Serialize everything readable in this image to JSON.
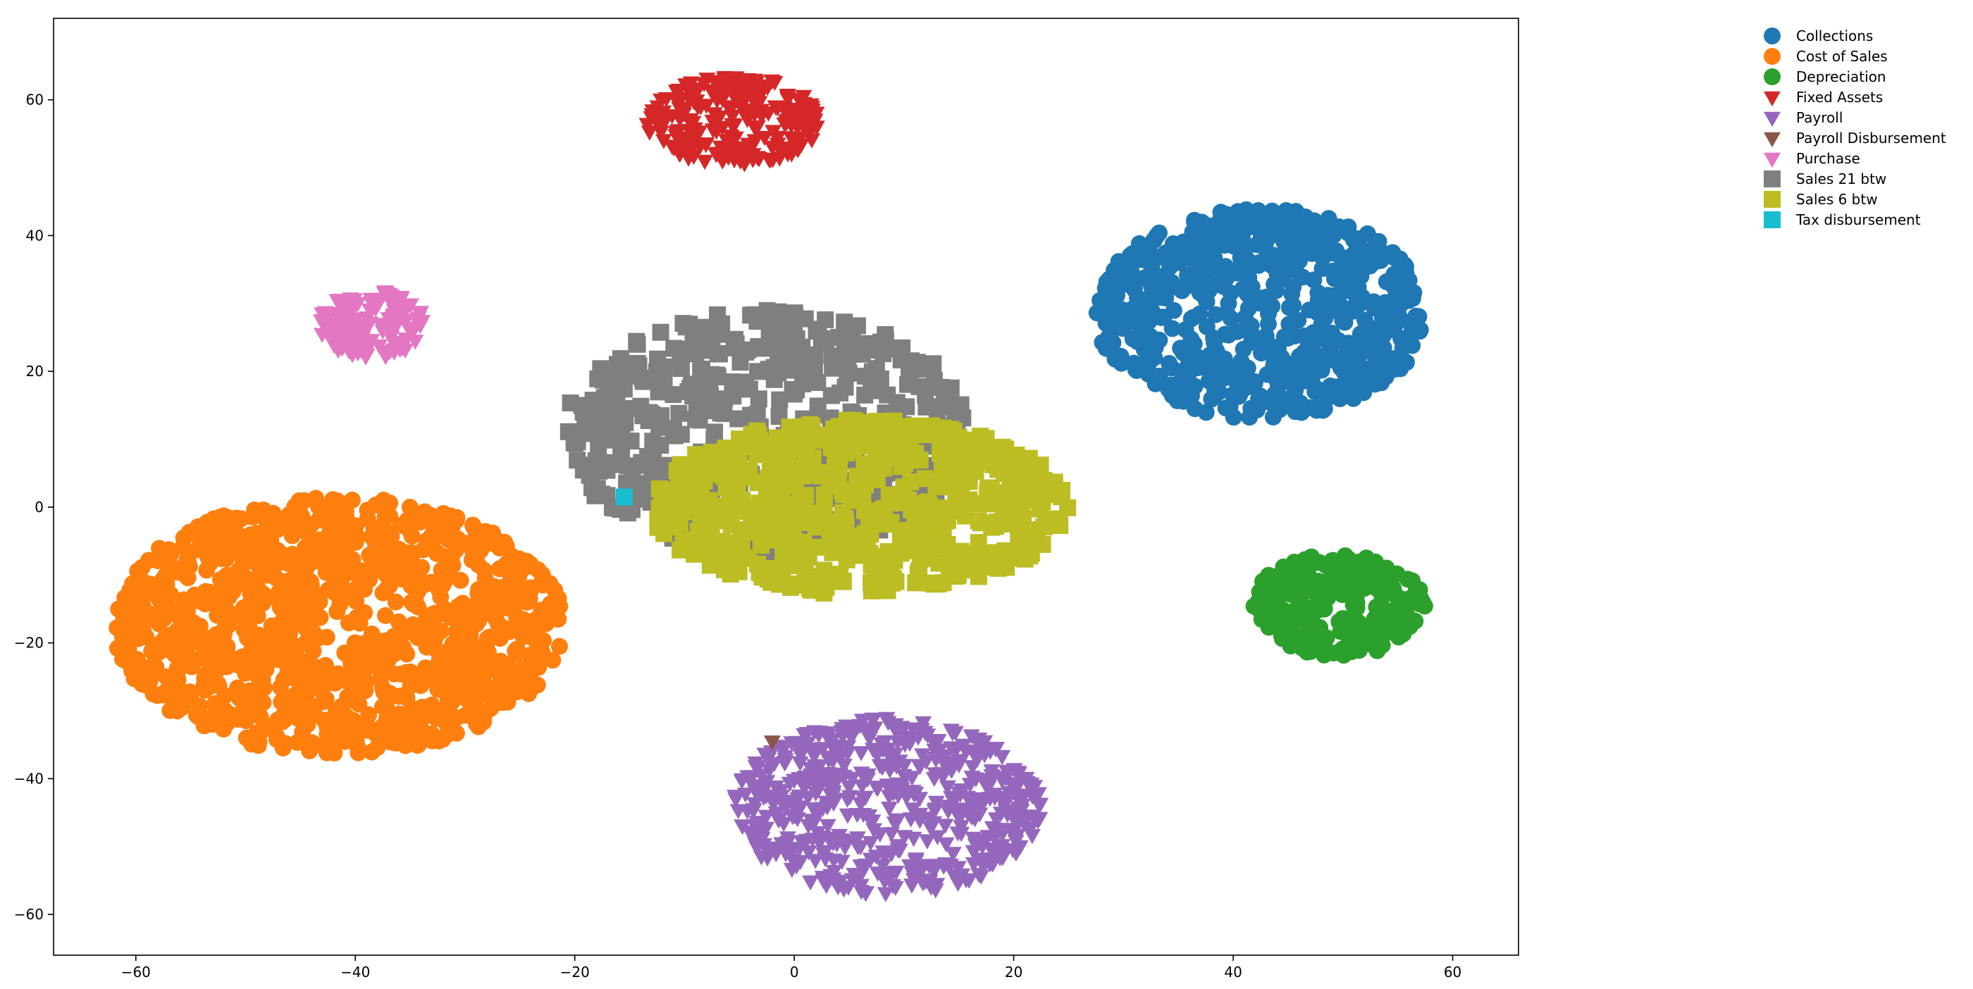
{
  "chart_data": {
    "type": "scatter",
    "title": "",
    "xlabel": "",
    "ylabel": "",
    "xlim": [
      -67.5,
      66
    ],
    "ylim": [
      -66,
      72
    ],
    "xticks": [
      -60,
      -40,
      -20,
      0,
      20,
      40,
      60
    ],
    "yticks": [
      -60,
      -40,
      -20,
      0,
      20,
      40,
      60
    ],
    "xtick_labels": [
      "−60",
      "−40",
      "−20",
      "0",
      "20",
      "40",
      "60"
    ],
    "ytick_labels": [
      "−60",
      "−40",
      "−20",
      "0",
      "20",
      "40",
      "60"
    ],
    "grid": false,
    "legend_position": "outside-top-right",
    "series": [
      {
        "name": "Collections",
        "marker": "circle",
        "color": "#1f77b4",
        "cluster": {
          "cx": 42.5,
          "cy": 28.5,
          "rx": 15,
          "ry": 15.5,
          "n": 650
        }
      },
      {
        "name": "Cost of Sales",
        "marker": "circle",
        "color": "#ff7f0e",
        "cluster": {
          "cx": -41.5,
          "cy": -17.5,
          "rx": 20.5,
          "ry": 19,
          "n": 1100
        }
      },
      {
        "name": "Depreciation",
        "marker": "circle",
        "color": "#2ca02c",
        "cluster": {
          "cx": 49.5,
          "cy": -14.5,
          "rx": 8,
          "ry": 7.5,
          "n": 260
        }
      },
      {
        "name": "Fixed Assets",
        "marker": "triangle-down",
        "color": "#d62728",
        "cluster": {
          "cx": -5.5,
          "cy": 57,
          "rx": 8,
          "ry": 6.5,
          "n": 230
        }
      },
      {
        "name": "Payroll",
        "marker": "triangle-down",
        "color": "#9467bd",
        "cluster": {
          "cx": 8.5,
          "cy": -44,
          "rx": 14,
          "ry": 13,
          "n": 550
        }
      },
      {
        "name": "Payroll Disbursement",
        "marker": "triangle-down",
        "color": "#8c564b",
        "points": [
          [
            -2,
            -34.5
          ]
        ]
      },
      {
        "name": "Purchase",
        "marker": "triangle-down",
        "color": "#e377c2",
        "cluster": {
          "cx": -38.5,
          "cy": 27,
          "rx": 4.8,
          "ry": 5,
          "n": 130
        }
      },
      {
        "name": "Sales 21 btw",
        "marker": "square",
        "color": "#7f7f7f",
        "cluster": {
          "cx": -2.5,
          "cy": 11,
          "rx": 18.5,
          "ry": 18,
          "n": 520
        }
      },
      {
        "name": "Sales 6 btw",
        "marker": "square",
        "color": "#bcbd22",
        "cluster": {
          "cx": 6,
          "cy": 0,
          "rx": 19,
          "ry": 13,
          "n": 620
        }
      },
      {
        "name": "Tax disbursement",
        "marker": "square",
        "color": "#17becf",
        "points": [
          [
            -15.5,
            1.5
          ]
        ]
      }
    ]
  }
}
